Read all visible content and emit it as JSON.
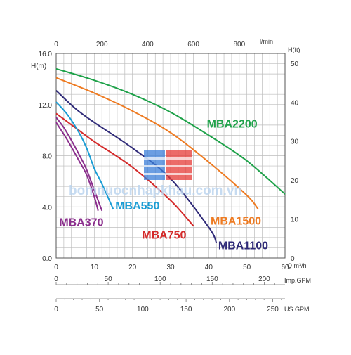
{
  "chart_data": {
    "type": "line",
    "title": "",
    "xlabel": "Q m³/h",
    "ylabel": "H(m)",
    "y2label": "H(ft)",
    "x2label": "l/min",
    "xlim": [
      0,
      60
    ],
    "ylim": [
      0,
      16
    ],
    "grid": true,
    "axes": {
      "x_ticks": [
        "0",
        "10",
        "20",
        "30",
        "40",
        "50",
        "60"
      ],
      "y_ticks": [
        "0.0",
        "4.0",
        "8.0",
        "12.0",
        "16.0"
      ],
      "top_ticks": [
        "0",
        "200",
        "400",
        "600",
        "800"
      ],
      "right_ticks": [
        "0",
        "10",
        "20",
        "30",
        "40",
        "50"
      ],
      "imp_label": "Imp.GPM",
      "imp_ticks": [
        "0",
        "50",
        "100",
        "150",
        "200"
      ],
      "us_label": "US.GPM",
      "us_ticks": [
        "0",
        "50",
        "100",
        "150",
        "200",
        "250"
      ]
    },
    "series": [
      {
        "name": "MBA2200",
        "color": "#1fa24a",
        "x": [
          0,
          10,
          20,
          30,
          40,
          50,
          60
        ],
        "y": [
          14.8,
          13.9,
          12.8,
          11.4,
          9.6,
          7.6,
          5.0
        ]
      },
      {
        "name": "MBA1500",
        "color": "#ee7b22",
        "x": [
          0,
          10,
          20,
          30,
          40,
          50,
          53
        ],
        "y": [
          14.1,
          12.9,
          11.5,
          9.8,
          7.5,
          4.9,
          3.8
        ]
      },
      {
        "name": "MBA1100",
        "color": "#2f2a78",
        "x": [
          0,
          5,
          10,
          20,
          30,
          40,
          42
        ],
        "y": [
          13.1,
          11.7,
          10.6,
          8.6,
          6.2,
          2.4,
          1.2
        ]
      },
      {
        "name": "MBA750",
        "color": "#d42a2a",
        "x": [
          0,
          5,
          10,
          20,
          30,
          36
        ],
        "y": [
          11.3,
          10.2,
          9.1,
          7.1,
          4.5,
          2.5
        ]
      },
      {
        "name": "MBA550",
        "color": "#199cd4",
        "x": [
          0,
          3,
          6,
          8,
          10,
          12,
          15
        ],
        "y": [
          12.2,
          11.2,
          9.8,
          8.6,
          7.0,
          5.8,
          3.8
        ]
      },
      {
        "name": "MBA370",
        "color": "#8b2f8d",
        "x": [
          0,
          2,
          4,
          6,
          8,
          10,
          12
        ],
        "y": [
          11.0,
          10.2,
          9.2,
          8.1,
          6.9,
          5.3,
          3.7
        ]
      },
      {
        "name": "",
        "color": "#8b2f8d",
        "x": [
          0,
          3,
          6,
          8,
          10,
          11
        ],
        "y": [
          10.6,
          9.2,
          7.6,
          6.5,
          4.8,
          3.7
        ]
      }
    ],
    "labels": [
      {
        "text": "MBA2200",
        "color": "#1fa24a",
        "x": 39.5,
        "y": 10.2
      },
      {
        "text": "MBA1500",
        "color": "#ee7b22",
        "x": 40.5,
        "y": 2.6
      },
      {
        "text": "MBA1100",
        "color": "#2f2a78",
        "x": 42.5,
        "y": 0.7
      },
      {
        "text": "MBA750",
        "color": "#d42a2a",
        "x": 22.5,
        "y": 1.5
      },
      {
        "text": "MBA550",
        "color": "#199cd4",
        "x": 15.5,
        "y": 3.8
      },
      {
        "text": "MBA370",
        "color": "#8b2f8d",
        "x": 0.8,
        "y": 2.5
      }
    ]
  },
  "watermark": {
    "text": "bomnuocnhapkhau.com.vn",
    "logo_colors": [
      "#3a7dd8",
      "#e53935"
    ]
  }
}
